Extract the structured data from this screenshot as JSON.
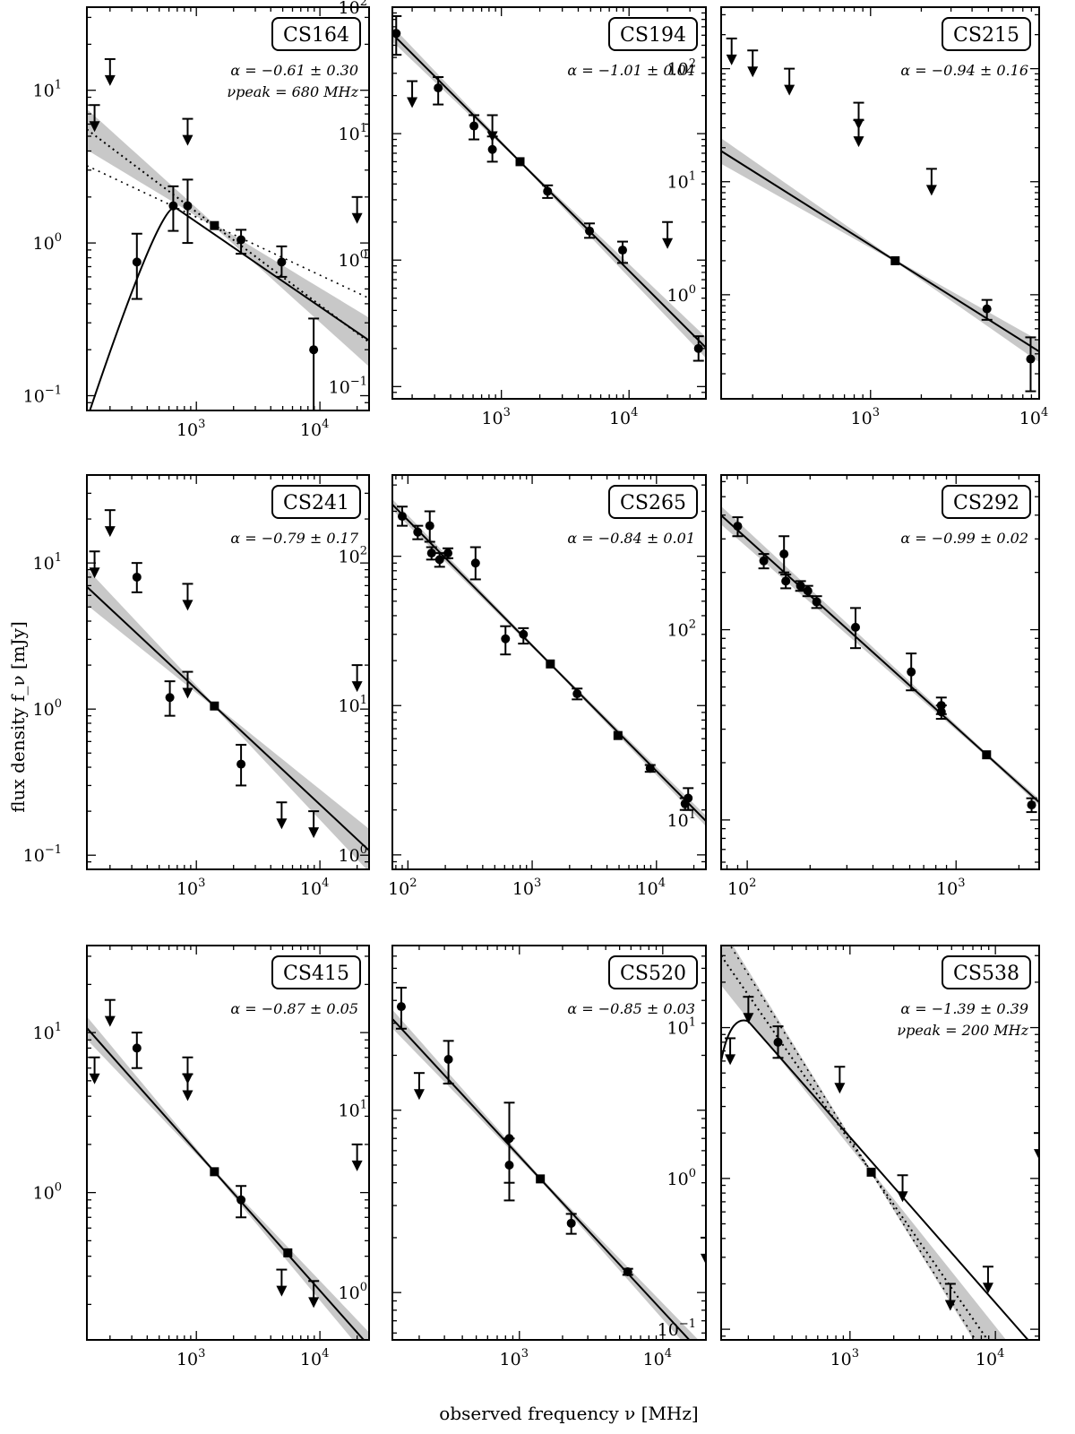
{
  "figure": {
    "ylabel": "flux density f_ν [mJy]",
    "xlabel": "observed frequency ν [MHz]"
  },
  "chart_data": [
    {
      "type": "scatter",
      "name": "CS164",
      "alpha_text": "α = −0.61 ± 0.30",
      "peak_text": "νpeak = 680 MHz",
      "xscale": "log",
      "yscale": "log",
      "xlim": [
        130,
        25000
      ],
      "ylim": [
        0.08,
        35
      ],
      "xticks": [
        1000,
        10000
      ],
      "yticks": [
        0.1,
        1,
        10
      ],
      "points": [
        [
          330,
          0.75,
          0.43,
          1.15
        ],
        [
          650,
          1.75,
          1.2,
          2.35
        ],
        [
          850,
          1.75,
          1.0,
          2.6
        ],
        [
          2300,
          1.05,
          0.85,
          1.22
        ],
        [
          4900,
          0.75,
          0.6,
          0.95
        ],
        [
          8900,
          0.2,
          0.07,
          0.32
        ]
      ],
      "squares": [
        [
          1400,
          1.3
        ]
      ],
      "upper_limits": [
        [
          150,
          8.0
        ],
        [
          200,
          16.0
        ],
        [
          850,
          6.5
        ],
        [
          20000,
          2.0
        ]
      ],
      "fit": {
        "x0": 1400,
        "y0": 1.3,
        "alpha": -0.61
      },
      "dotted": {
        "x0": 1400,
        "y0": 1.3,
        "alpha": -0.38
      },
      "peaked": {
        "x0": 130,
        "y0": 0.07,
        "peak_x": 680,
        "peak_y": 1.7,
        "x1": 25000,
        "y1": 0.23
      },
      "band_width": 0.12
    },
    {
      "type": "scatter",
      "name": "CS194",
      "alpha_text": "α = −1.01 ± 0.04",
      "xscale": "log",
      "yscale": "log",
      "xlim": [
        140,
        40000
      ],
      "ylim": [
        0.08,
        100
      ],
      "xticks": [
        1000,
        10000
      ],
      "yticks": [
        0.1,
        1,
        10,
        100
      ],
      "points": [
        [
          150,
          62,
          42,
          85
        ],
        [
          320,
          23,
          17,
          28
        ],
        [
          610,
          11.5,
          9,
          14
        ],
        [
          850,
          7.5,
          6,
          9.5
        ],
        [
          2300,
          3.5,
          3.1,
          3.9
        ],
        [
          4900,
          1.7,
          1.5,
          1.95
        ],
        [
          8900,
          1.2,
          0.95,
          1.4
        ],
        [
          35000,
          0.2,
          0.16,
          0.25
        ]
      ],
      "squares": [
        [
          1400,
          6.0
        ]
      ],
      "upper_limits": [
        [
          200,
          26
        ],
        [
          850,
          14
        ],
        [
          20000,
          2.0
        ]
      ],
      "fit": {
        "x0": 1400,
        "y0": 6.0,
        "alpha": -1.01
      },
      "band_width": 0.05
    },
    {
      "type": "scatter",
      "name": "CS215",
      "alpha_text": "α = −0.94 ± 0.16",
      "xscale": "log",
      "yscale": "log",
      "xlim": [
        130,
        10000
      ],
      "ylim": [
        0.12,
        350
      ],
      "xticks": [
        1000,
        10000
      ],
      "yticks": [
        1,
        10,
        100
      ],
      "points": [
        [
          4900,
          0.75,
          0.6,
          0.9
        ],
        [
          8900,
          0.27,
          0.14,
          0.42
        ]
      ],
      "squares": [
        [
          1400,
          2.0
        ]
      ],
      "upper_limits": [
        [
          150,
          185
        ],
        [
          200,
          145
        ],
        [
          330,
          100
        ],
        [
          850,
          50
        ],
        [
          850,
          35
        ],
        [
          2300,
          13
        ]
      ],
      "fit": {
        "x0": 1400,
        "y0": 2.0,
        "alpha": -0.94
      },
      "band_width": 0.1
    },
    {
      "type": "scatter",
      "name": "CS241",
      "alpha_text": "α = −0.79 ± 0.17",
      "xscale": "log",
      "yscale": "log",
      "xlim": [
        130,
        25000
      ],
      "ylim": [
        0.08,
        40
      ],
      "xticks": [
        1000,
        10000
      ],
      "yticks": [
        0.1,
        1,
        10
      ],
      "points": [
        [
          330,
          8.0,
          6.3,
          10.0
        ],
        [
          610,
          1.2,
          0.9,
          1.55
        ],
        [
          2300,
          0.42,
          0.3,
          0.57
        ]
      ],
      "squares": [
        [
          1400,
          1.05
        ]
      ],
      "upper_limits": [
        [
          150,
          12
        ],
        [
          200,
          23
        ],
        [
          850,
          7.2
        ],
        [
          850,
          1.8
        ],
        [
          4900,
          0.23
        ],
        [
          8900,
          0.2
        ],
        [
          20000,
          2.0
        ]
      ],
      "fit": {
        "x0": 1400,
        "y0": 1.05,
        "alpha": -0.79
      },
      "band_width": 0.11
    },
    {
      "type": "scatter",
      "name": "CS265",
      "alpha_text": "α = −0.84 ± 0.01",
      "xscale": "log",
      "yscale": "log",
      "xlim": [
        75,
        25000
      ],
      "ylim": [
        0.8,
        350
      ],
      "xticks": [
        100,
        1000,
        10000
      ],
      "yticks": [
        1,
        10,
        100
      ],
      "points": [
        [
          90,
          185,
          160,
          215
        ],
        [
          120,
          145,
          130,
          160
        ],
        [
          150,
          160,
          125,
          200
        ],
        [
          155,
          105,
          95,
          115
        ],
        [
          180,
          95,
          85,
          105
        ],
        [
          210,
          105,
          97,
          113
        ],
        [
          350,
          90,
          70,
          115
        ],
        [
          610,
          28,
          22,
          34
        ],
        [
          850,
          30,
          26,
          33
        ],
        [
          2300,
          12,
          11,
          13
        ],
        [
          8900,
          3.8,
          3.6,
          4.0
        ],
        [
          17000,
          2.2,
          2.0,
          2.4
        ],
        [
          18000,
          2.4,
          2.0,
          2.8
        ]
      ],
      "squares": [
        [
          1400,
          19
        ],
        [
          4900,
          6.3
        ]
      ],
      "upper_limits": [],
      "fit": {
        "x0": 1400,
        "y0": 19,
        "alpha": -0.84
      },
      "band_width": 0.02
    },
    {
      "type": "scatter",
      "name": "CS292",
      "alpha_text": "α = −0.99 ± 0.02",
      "xscale": "log",
      "yscale": "log",
      "xlim": [
        75,
        2500
      ],
      "ylim": [
        5.5,
        650
      ],
      "xticks": [
        100,
        1000
      ],
      "yticks": [
        10,
        100
      ],
      "points": [
        [
          90,
          350,
          310,
          390
        ],
        [
          120,
          230,
          210,
          250
        ],
        [
          150,
          250,
          200,
          310
        ],
        [
          153,
          180,
          165,
          195
        ],
        [
          180,
          170,
          160,
          180
        ],
        [
          195,
          160,
          150,
          170
        ],
        [
          215,
          140,
          130,
          150
        ],
        [
          330,
          103,
          80,
          130
        ],
        [
          610,
          60,
          48,
          75
        ],
        [
          850,
          40,
          36,
          44
        ],
        [
          850,
          37,
          34,
          40
        ],
        [
          2300,
          12,
          11,
          13
        ]
      ],
      "squares": [
        [
          1400,
          22
        ]
      ],
      "upper_limits": [],
      "fit": {
        "x0": 1400,
        "y0": 22,
        "alpha": -0.99
      },
      "band_width": 0.03
    },
    {
      "type": "scatter",
      "name": "CS415",
      "alpha_text": "α = −0.87 ± 0.05",
      "xscale": "log",
      "yscale": "log",
      "xlim": [
        130,
        25000
      ],
      "ylim": [
        0.12,
        35
      ],
      "xticks": [
        1000,
        10000
      ],
      "yticks": [
        1,
        10
      ],
      "points": [
        [
          330,
          8.0,
          6.0,
          10.0
        ],
        [
          2300,
          0.9,
          0.7,
          1.1
        ]
      ],
      "squares": [
        [
          1400,
          1.35
        ],
        [
          5500,
          0.42
        ]
      ],
      "upper_limits": [
        [
          150,
          7
        ],
        [
          200,
          16
        ],
        [
          850,
          7
        ],
        [
          850,
          5.5
        ],
        [
          4900,
          0.33
        ],
        [
          8900,
          0.28
        ],
        [
          20000,
          2.0
        ]
      ],
      "fit": {
        "x0": 1400,
        "y0": 1.35,
        "alpha": -0.87
      },
      "band_width": 0.06
    },
    {
      "type": "scatter",
      "name": "CS520",
      "alpha_text": "α = −0.85 ± 0.03",
      "xscale": "log",
      "yscale": "log",
      "xlim": [
        130,
        20000
      ],
      "ylim": [
        0.55,
        80
      ],
      "xticks": [
        1000,
        10000
      ],
      "yticks": [
        1,
        10
      ],
      "points": [
        [
          150,
          37,
          28,
          47
        ],
        [
          320,
          19,
          14,
          24
        ],
        [
          850,
          7.0,
          4.0,
          11
        ],
        [
          850,
          5.0,
          3.2,
          7.0
        ],
        [
          2300,
          2.4,
          2.1,
          2.7
        ],
        [
          5700,
          1.3,
          1.25,
          1.35
        ]
      ],
      "squares": [
        [
          1400,
          4.2
        ]
      ],
      "upper_limits": [
        [
          200,
          16
        ],
        [
          20000,
          2.0
        ]
      ],
      "fit": {
        "x0": 1400,
        "y0": 4.2,
        "alpha": -0.85
      },
      "band_width": 0.04
    },
    {
      "type": "scatter",
      "name": "CS538",
      "alpha_text": "α = −1.39 ± 0.39",
      "peak_text": "νpeak = 200 MHz",
      "xscale": "log",
      "yscale": "log",
      "xlim": [
        130,
        20000
      ],
      "ylim": [
        0.085,
        35
      ],
      "xticks": [
        1000,
        10000
      ],
      "yticks": [
        0.1,
        1,
        10
      ],
      "points": [
        [
          320,
          8.0,
          6.3,
          10.2
        ]
      ],
      "squares": [
        [
          1400,
          1.1
        ]
      ],
      "upper_limits": [
        [
          150,
          8.5
        ],
        [
          200,
          16
        ],
        [
          850,
          5.5
        ],
        [
          2300,
          1.05
        ],
        [
          4900,
          0.2
        ],
        [
          8900,
          0.26
        ],
        [
          20000,
          2.0
        ]
      ],
      "fit": {
        "x0": 1400,
        "y0": 1.1,
        "alpha": -1.39
      },
      "dotted": {
        "x0": 1400,
        "y0": 1.1,
        "alpha": -1.55
      },
      "peaked": {
        "x0": 130,
        "y0": 6.0,
        "peak_x": 200,
        "peak_y": 11,
        "x1": 20000,
        "y1": 0.07
      },
      "band_width": 0.18
    }
  ]
}
